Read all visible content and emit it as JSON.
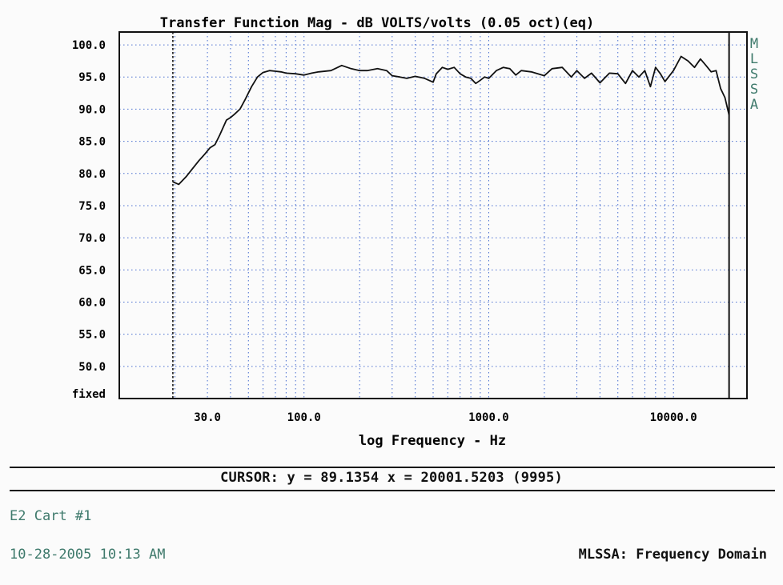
{
  "chart_data": {
    "type": "line",
    "title": "Transfer Function Mag - dB VOLTS/volts (0.05 oct)(eq)",
    "xlabel": "log Frequency - Hz",
    "ylabel": "",
    "x_scale": "log",
    "xlim": [
      10,
      25000
    ],
    "ylim": [
      45,
      102
    ],
    "y_ticks": [
      "100.0",
      "95.0",
      "90.0",
      "85.0",
      "80.0",
      "75.0",
      "70.0",
      "65.0",
      "60.0",
      "55.0",
      "50.0"
    ],
    "y_tick_values": [
      100,
      95,
      90,
      85,
      80,
      75,
      70,
      65,
      60,
      55,
      50
    ],
    "y_bottom_label": "fixed",
    "x_ticks": [
      "30.0",
      "100.0",
      "1000.0",
      "10000.0"
    ],
    "x_tick_values": [
      30,
      100,
      1000,
      10000
    ],
    "grid": true,
    "cursor_line_left_x": 19.5,
    "cursor_line_right_x": 20001.5,
    "series": [
      {
        "x": [
          19.5,
          21,
          23,
          25,
          27,
          29,
          31,
          33,
          35,
          38,
          40,
          42,
          45,
          48,
          52,
          56,
          60,
          65,
          70,
          75,
          80,
          90,
          100,
          110,
          120,
          140,
          160,
          180,
          200,
          220,
          250,
          280,
          300,
          330,
          360,
          400,
          450,
          500,
          520,
          560,
          600,
          650,
          700,
          750,
          800,
          850,
          900,
          950,
          1000,
          1100,
          1200,
          1300,
          1400,
          1500,
          1700,
          2000,
          2200,
          2500,
          2800,
          3000,
          3300,
          3600,
          4000,
          4500,
          5000,
          5500,
          6000,
          6500,
          7000,
          7500,
          8000,
          8500,
          9000,
          10000,
          11000,
          12000,
          13000,
          14000,
          15000,
          16000,
          17000,
          18000,
          19000,
          20000
        ],
        "y": [
          78.7,
          78.3,
          79.5,
          80.8,
          82.0,
          83.0,
          84.0,
          84.5,
          86.0,
          88.3,
          88.7,
          89.2,
          90.0,
          91.5,
          93.5,
          95.0,
          95.7,
          96.0,
          95.9,
          95.8,
          95.6,
          95.5,
          95.3,
          95.6,
          95.8,
          96.0,
          96.8,
          96.3,
          96.0,
          96.0,
          96.3,
          96.0,
          95.2,
          95.0,
          94.8,
          95.1,
          94.8,
          94.2,
          95.5,
          96.5,
          96.2,
          96.5,
          95.5,
          95.0,
          94.8,
          94.0,
          94.5,
          95.0,
          94.8,
          96.0,
          96.5,
          96.3,
          95.3,
          96.0,
          95.8,
          95.2,
          96.3,
          96.5,
          95.0,
          96.0,
          94.8,
          95.6,
          94.1,
          95.6,
          95.5,
          94.0,
          96.0,
          95.0,
          96.0,
          93.5,
          96.5,
          95.5,
          94.3,
          96.0,
          98.2,
          97.5,
          96.5,
          97.8,
          96.8,
          95.8,
          96.0,
          93.2,
          91.8,
          89.1
        ]
      }
    ]
  },
  "side_brand_letters": [
    "M",
    "L",
    "S",
    "S",
    "A"
  ],
  "footer": {
    "cursor_readout": "CURSOR: y = 89.1354 x = 20001.5203 (9995)",
    "test_label": "E2 Cart #1",
    "timestamp": "10-28-2005 10:13 AM",
    "mode_label": "MLSSA: Frequency Domain"
  },
  "colors": {
    "ink": "#111111",
    "grid": "#4a6fd0",
    "brand": "#3f7a6c",
    "paper": "#fbfbfb"
  }
}
